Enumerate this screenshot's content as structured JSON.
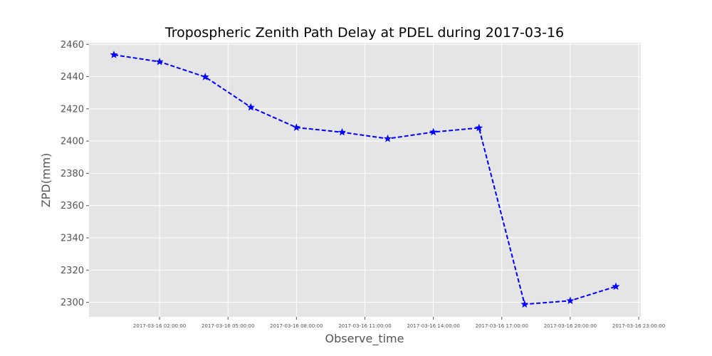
{
  "chart_data": {
    "type": "line",
    "title": "Tropospheric Zenith Path Delay at PDEL during 2017-03-16",
    "xlabel": "Observe_time",
    "ylabel": "ZPD(mm)",
    "x": [
      "2017-03-16 00:00:00",
      "2017-03-16 02:00:00",
      "2017-03-16 04:00:00",
      "2017-03-16 06:00:00",
      "2017-03-16 08:00:00",
      "2017-03-16 10:00:00",
      "2017-03-16 12:00:00",
      "2017-03-16 14:00:00",
      "2017-03-16 16:00:00",
      "2017-03-16 18:00:00",
      "2017-03-16 20:00:00",
      "2017-03-16 22:00:00"
    ],
    "xtick_labels": [
      "2017-03-16 02:00:00",
      "2017-03-16 05:00:00",
      "2017-03-16 08:00:00",
      "2017-03-16 11:00:00",
      "2017-03-16 14:00:00",
      "2017-03-16 17:00:00",
      "2017-03-16 20:00:00",
      "2017-03-16 23:00:00"
    ],
    "xlim": [
      "2016-03-15 22:40:00",
      "2017-03-16 23:20:00"
    ],
    "y": [
      2453.5,
      2449.2,
      2439.8,
      2421.0,
      2408.4,
      2405.5,
      2401.5,
      2405.6,
      2408.2,
      2298.8,
      2301.0,
      2309.8
    ],
    "yticks": [
      2300,
      2320,
      2340,
      2360,
      2380,
      2400,
      2420,
      2440,
      2460
    ],
    "ylim": [
      2291,
      2461
    ],
    "grid": true,
    "style": {
      "line": "dashed",
      "marker": "star",
      "color": "#0000ff",
      "background": "#e5e5e5",
      "grid_color": "#ffffff"
    }
  }
}
